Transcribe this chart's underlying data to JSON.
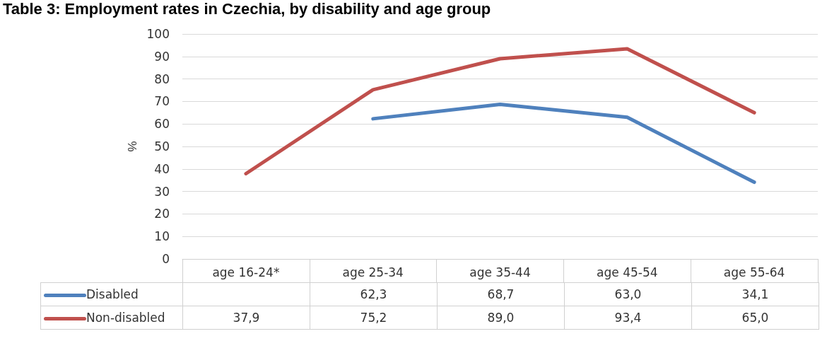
{
  "chart_data": {
    "type": "line",
    "title": "Table 3: Employment rates in Czechia, by disability and age group",
    "ylabel": "%",
    "categories": [
      "age 16-24*",
      "age 25-34",
      "age 35-44",
      "age 45-54",
      "age 55-64"
    ],
    "series": [
      {
        "name": "Disabled",
        "color": "#4f81bd",
        "values": [
          null,
          62.3,
          68.7,
          63.0,
          34.1
        ],
        "value_labels": [
          null,
          "62,3",
          "68,7",
          "63,0",
          "34,1"
        ]
      },
      {
        "name": "Non-disabled",
        "color": "#c0504d",
        "values": [
          37.9,
          75.2,
          89.0,
          93.4,
          65.0
        ],
        "value_labels": [
          "37,9",
          "75,2",
          "89,0",
          "93,4",
          "65,0"
        ]
      }
    ],
    "ylim": [
      0,
      100
    ],
    "yticks": [
      0,
      10,
      20,
      30,
      40,
      50,
      60,
      70,
      80,
      90,
      100
    ],
    "grid": "y",
    "legend": "bottom",
    "marker": "none",
    "line_style": "solid"
  }
}
